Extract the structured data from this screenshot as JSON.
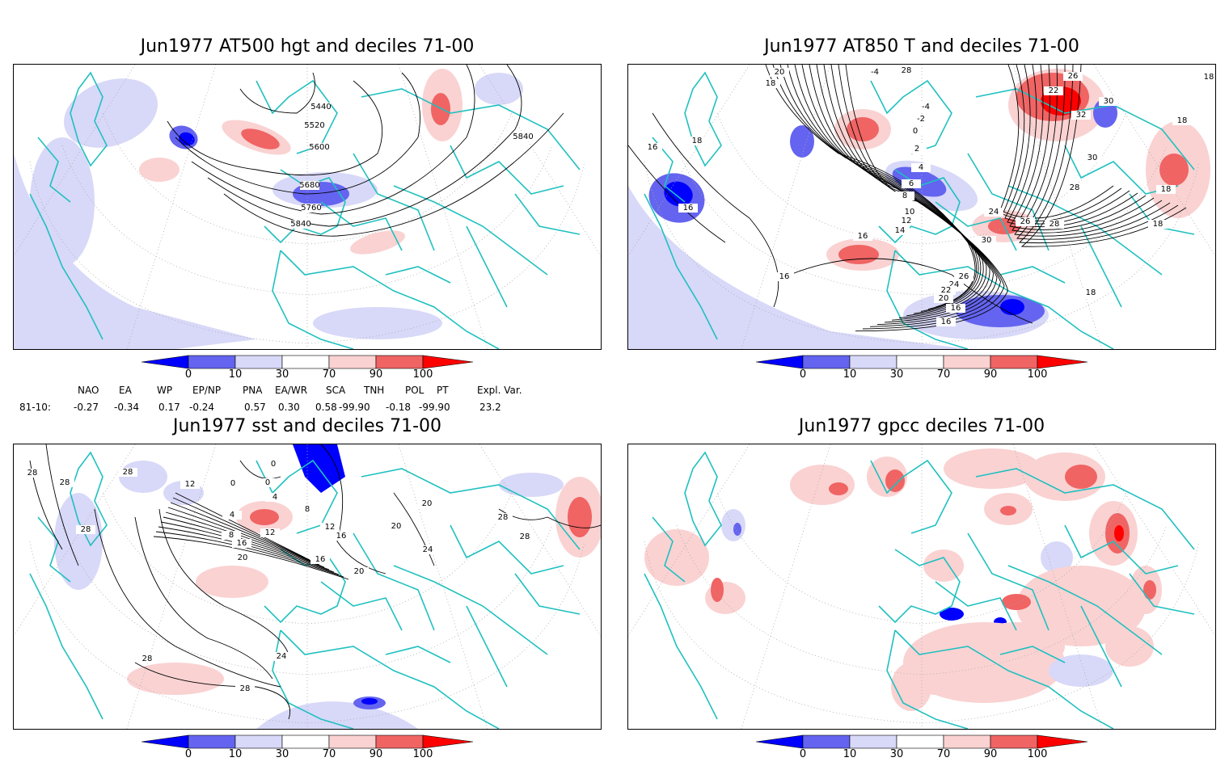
{
  "panels": [
    {
      "title": "Jun1977 AT500 hgt and deciles 71-00",
      "contour_labels": [
        "5440",
        "5520",
        "5600",
        "5680",
        "5760",
        "5840",
        "5840"
      ]
    },
    {
      "title": "Jun1977 AT850 T and deciles 71-00",
      "contour_labels": [
        "20",
        "18",
        "-4",
        "-4",
        "-2",
        "0",
        "2",
        "4",
        "6",
        "8",
        "10",
        "12",
        "14",
        "16",
        "18",
        "16",
        "16",
        "16",
        "18",
        "18",
        "22",
        "26",
        "30",
        "32",
        "30",
        "28",
        "24",
        "26",
        "28",
        "30",
        "26",
        "24",
        "22",
        "20",
        "16",
        "16",
        "28",
        "18",
        "18",
        "18"
      ]
    },
    {
      "title": "Jun1977 sst and deciles 71-00",
      "contour_labels": [
        "28",
        "28",
        "28",
        "28",
        "12",
        "0",
        "0",
        "0",
        "4",
        "4",
        "8",
        "12",
        "16",
        "20",
        "24",
        "28",
        "24",
        "28",
        "20",
        "16",
        "8",
        "12",
        "16",
        "20",
        "20",
        "28",
        "28"
      ]
    },
    {
      "title": "Jun1977 gpcc deciles 71-00",
      "contour_labels": []
    }
  ],
  "colorbar": {
    "labels": [
      "0",
      "10",
      "30",
      "70",
      "90",
      "100"
    ],
    "colors": [
      "#0000ff",
      "#6464f0",
      "#d8d8f8",
      "#ffffff",
      "#fad2d2",
      "#f06464",
      "#ff0000"
    ]
  },
  "indices": {
    "header": [
      "NAO",
      "EA",
      "WP",
      "EP/NP",
      "PNA",
      "EA/WR",
      "SCA",
      "TNH",
      "POL",
      "PT",
      "Expl. Var."
    ],
    "row_label": "81-10:",
    "values": [
      "-0.27",
      "-0.34",
      "0.17",
      "-0.24",
      "0.57",
      "0.30",
      "0.58",
      "-99.90",
      "-0.18",
      "-99.90",
      "23.2"
    ]
  },
  "colors": {
    "coast": "#20c0c0",
    "contour": "#000000",
    "grid": "#aaaaaa",
    "blue_dark": "#0000ff",
    "blue_mid": "#6464f0",
    "blue_light": "#d8d8f8",
    "red_light": "#fad2d2",
    "red_mid": "#f06464",
    "red_dark": "#ff0000"
  }
}
